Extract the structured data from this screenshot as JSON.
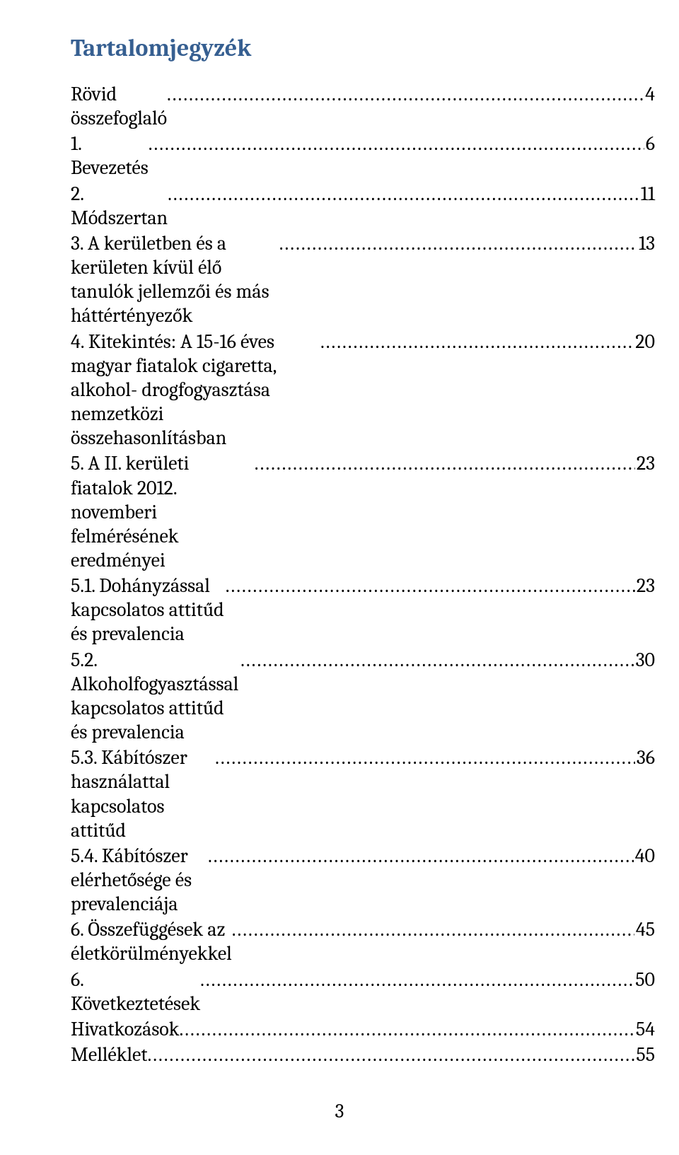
{
  "title": "Tartalomjegyzék",
  "title_color": "#365f91",
  "title_fontsize": 34,
  "body_fontsize": 28,
  "text_color": "#000000",
  "background_color": "#ffffff",
  "font_family": "Cambria, Georgia, 'Times New Roman', serif",
  "page_number": "3",
  "entries": [
    {
      "label": "Rövid összefoglaló",
      "page": "4"
    },
    {
      "label": "1. Bevezetés",
      "page": "6"
    },
    {
      "label": "2. Módszertan",
      "page": "11"
    },
    {
      "label": "3. A kerületben és a kerületen kívül élő tanulók jellemzői és más háttértényezők",
      "page": "13"
    },
    {
      "label": "4. Kitekintés: A 15-16 éves magyar fiatalok cigaretta, alkohol- drogfogyasztása nemzetközi összehasonlításban",
      "page": "20"
    },
    {
      "label": "5. A II. kerületi fiatalok 2012. novemberi felmérésének eredményei",
      "page": "23"
    },
    {
      "label": "5.1. Dohányzással kapcsolatos attitűd és prevalencia",
      "page": "23"
    },
    {
      "label": "5.2. Alkoholfogyasztással kapcsolatos attitűd és prevalencia",
      "page": "30"
    },
    {
      "label": "5.3. Kábítószer használattal kapcsolatos attitűd",
      "page": "36"
    },
    {
      "label": "5.4. Kábítószer elérhetősége és prevalenciája",
      "page": "40"
    },
    {
      "label": "6. Összefüggések az életkörülményekkel",
      "page": "45"
    },
    {
      "label": "6. Következtetések",
      "page": "50"
    },
    {
      "label": "Hivatkozások",
      "page": "54"
    },
    {
      "label": "Melléklet",
      "page": "55"
    }
  ]
}
